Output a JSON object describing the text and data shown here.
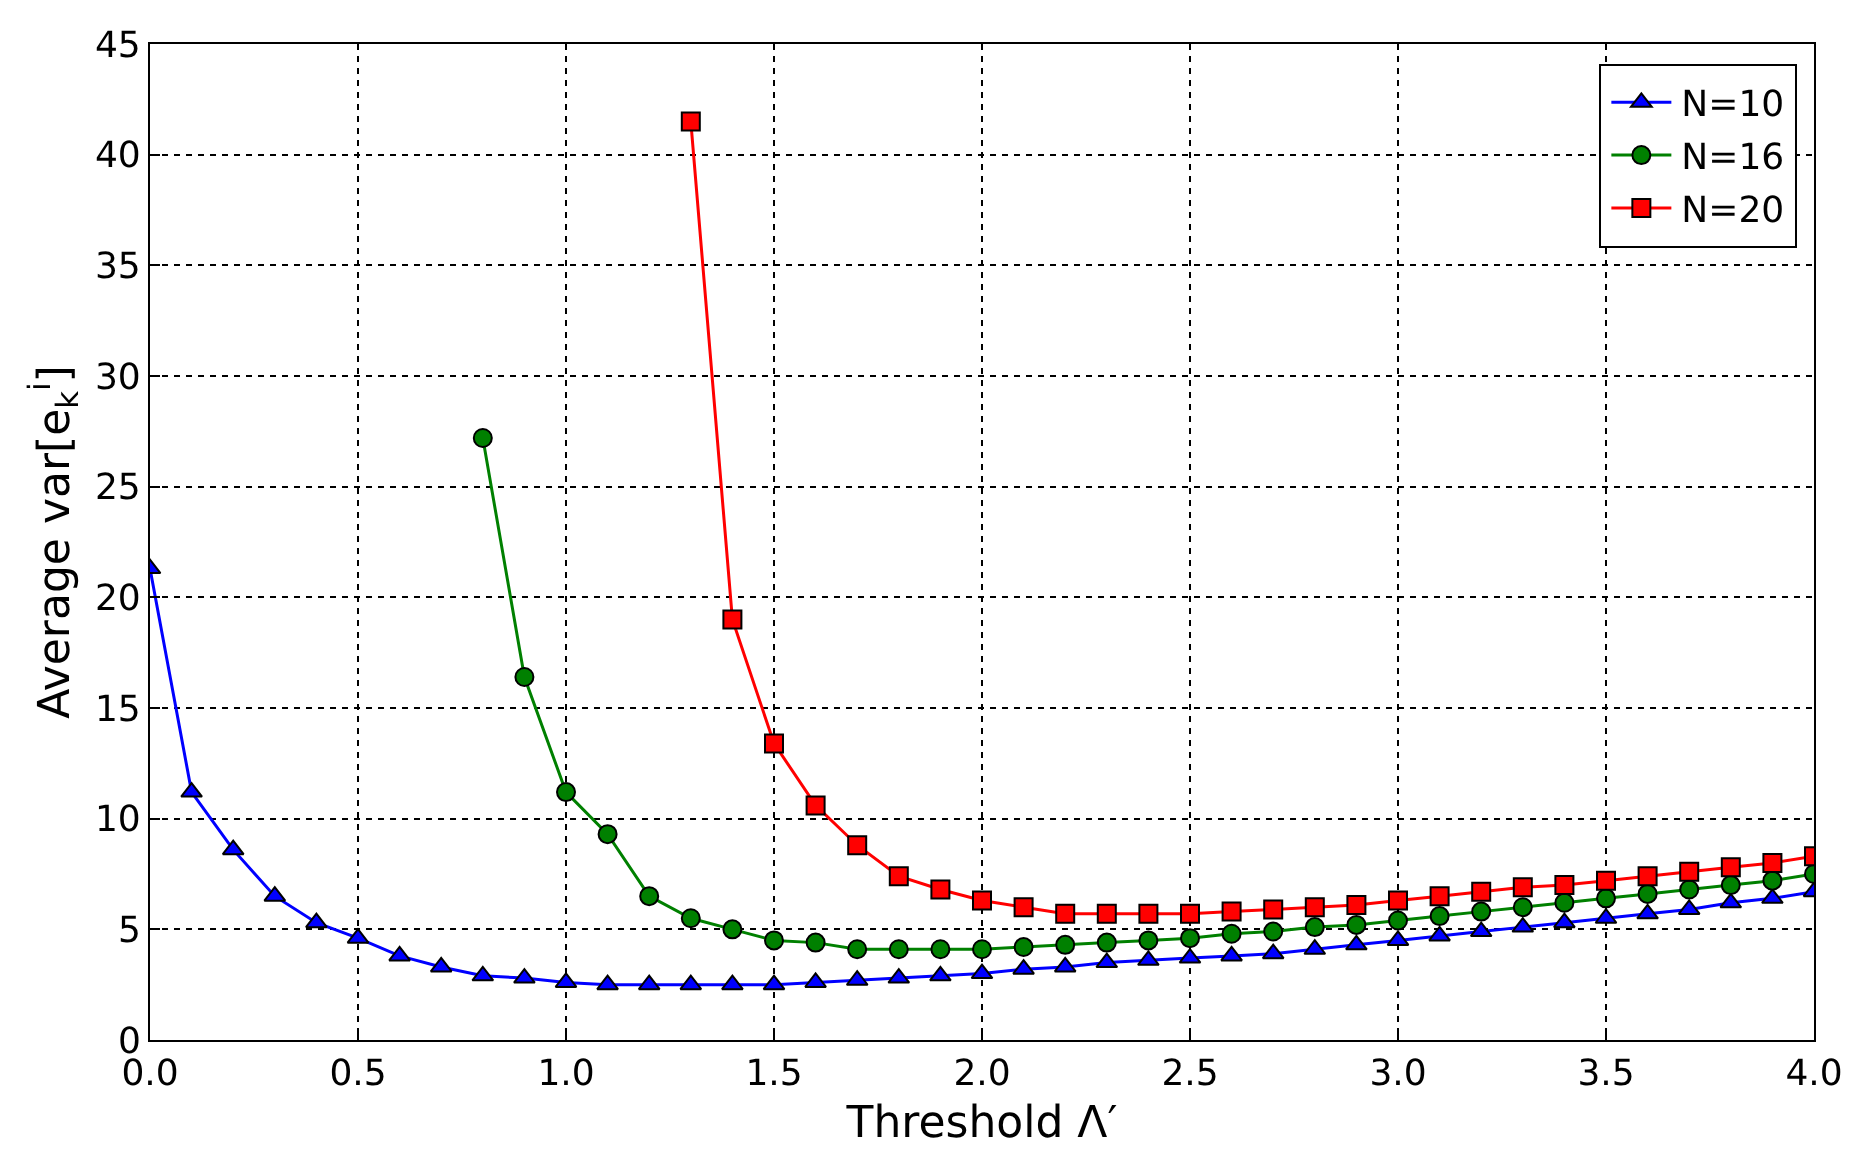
{
  "chart_data": {
    "type": "line",
    "xlabel": "Threshold Λ′",
    "ylabel": "Average var[e$_{k}$$^{i}$]",
    "xlim": [
      0,
      4
    ],
    "xticks": [
      {
        "value": 0,
        "label": "0.0"
      },
      {
        "value": 0.5,
        "label": "0.5"
      },
      {
        "value": 1,
        "label": "1.0"
      },
      {
        "value": 1.5,
        "label": "1.5"
      },
      {
        "value": 2,
        "label": "2.0"
      },
      {
        "value": 2.5,
        "label": "2.5"
      },
      {
        "value": 3,
        "label": "3.0"
      },
      {
        "value": 3.5,
        "label": "3.5"
      },
      {
        "value": 4,
        "label": "4.0"
      }
    ],
    "ylim": [
      0,
      45
    ],
    "yticks": [
      0,
      5,
      10,
      15,
      20,
      25,
      30,
      35,
      40,
      45
    ],
    "grid": true,
    "legend": "top right",
    "series": [
      {
        "name": "N=10",
        "color": "#0000ff",
        "marker": "triangle",
        "x": [
          0,
          0.1,
          0.2,
          0.3,
          0.4,
          0.5,
          0.6,
          0.7,
          0.8,
          0.9,
          1.0,
          1.1,
          1.2,
          1.3,
          1.4,
          1.5,
          1.6,
          1.7,
          1.8,
          1.9,
          2.0,
          2.1,
          2.2,
          2.3,
          2.4,
          2.5,
          2.6,
          2.7,
          2.8,
          2.9,
          3.0,
          3.1,
          3.2,
          3.3,
          3.4,
          3.5,
          3.6,
          3.7,
          3.8,
          3.9,
          4.0
        ],
        "values": [
          21.3,
          11.2,
          8.6,
          6.5,
          5.3,
          4.6,
          3.8,
          3.3,
          2.9,
          2.8,
          2.6,
          2.5,
          2.5,
          2.5,
          2.5,
          2.5,
          2.6,
          2.7,
          2.8,
          2.9,
          3.0,
          3.2,
          3.3,
          3.5,
          3.6,
          3.7,
          3.8,
          3.9,
          4.1,
          4.3,
          4.5,
          4.7,
          4.9,
          5.1,
          5.3,
          5.5,
          5.7,
          5.9,
          6.2,
          6.4,
          6.7
        ]
      },
      {
        "name": "N=16",
        "color": "#008000",
        "marker": "circle",
        "x": [
          0.8,
          0.9,
          1.0,
          1.1,
          1.2,
          1.3,
          1.4,
          1.5,
          1.6,
          1.7,
          1.8,
          1.9,
          2.0,
          2.1,
          2.2,
          2.3,
          2.4,
          2.5,
          2.6,
          2.7,
          2.8,
          2.9,
          3.0,
          3.1,
          3.2,
          3.3,
          3.4,
          3.5,
          3.6,
          3.7,
          3.8,
          3.9,
          4.0
        ],
        "values": [
          27.2,
          16.4,
          11.2,
          9.3,
          6.5,
          5.5,
          5.0,
          4.5,
          4.4,
          4.1,
          4.1,
          4.1,
          4.1,
          4.2,
          4.3,
          4.4,
          4.5,
          4.6,
          4.8,
          4.9,
          5.1,
          5.2,
          5.4,
          5.6,
          5.8,
          6.0,
          6.2,
          6.4,
          6.6,
          6.8,
          7.0,
          7.2,
          7.5
        ]
      },
      {
        "name": "N=20",
        "color": "#ff0000",
        "marker": "square",
        "x": [
          1.3,
          1.4,
          1.5,
          1.6,
          1.7,
          1.8,
          1.9,
          2.0,
          2.1,
          2.2,
          2.3,
          2.4,
          2.5,
          2.6,
          2.7,
          2.8,
          2.9,
          3.0,
          3.1,
          3.2,
          3.3,
          3.4,
          3.5,
          3.6,
          3.7,
          3.8,
          3.9,
          4.0
        ],
        "values": [
          41.5,
          19.0,
          13.4,
          10.6,
          8.8,
          7.4,
          6.8,
          6.3,
          6.0,
          5.7,
          5.7,
          5.7,
          5.7,
          5.8,
          5.9,
          6.0,
          6.1,
          6.3,
          6.5,
          6.7,
          6.9,
          7.0,
          7.2,
          7.4,
          7.6,
          7.8,
          8.0,
          8.3
        ]
      }
    ]
  }
}
